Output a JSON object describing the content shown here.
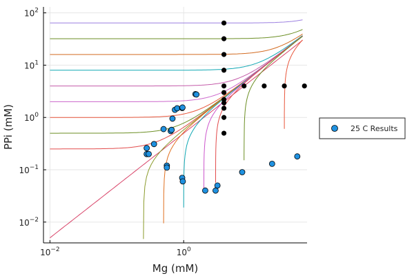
{
  "chart_data": {
    "type": "scatter",
    "xlabel": "Mg (mM)",
    "ylabel": "PPi (mM)",
    "x_scale": "log",
    "y_scale": "log",
    "xlim": [
      0.008,
      70
    ],
    "ylim": [
      0.004,
      130
    ],
    "grid": true,
    "legend_position": "right",
    "x_ticks": [
      {
        "value": 0.01,
        "base": "10",
        "exp": "−2"
      },
      {
        "value": 1,
        "base": "10",
        "exp": "0"
      }
    ],
    "y_ticks": [
      {
        "value": 0.01,
        "base": "10",
        "exp": "−2"
      },
      {
        "value": 0.1,
        "base": "10",
        "exp": "−1"
      },
      {
        "value": 1,
        "base": "10",
        "exp": "0"
      },
      {
        "value": 10,
        "base": "10",
        "exp": "1"
      },
      {
        "value": 100,
        "base": "10",
        "exp": "2"
      }
    ],
    "series": [
      {
        "name": "25 C Results",
        "color": "#1f91e0",
        "points": [
          [
            0.28,
            0.26
          ],
          [
            0.28,
            0.2
          ],
          [
            0.3,
            0.2
          ],
          [
            0.36,
            0.31
          ],
          [
            0.5,
            0.6
          ],
          [
            0.56,
            0.12
          ],
          [
            0.56,
            0.11
          ],
          [
            0.64,
            0.55
          ],
          [
            0.66,
            0.58
          ],
          [
            0.68,
            0.95
          ],
          [
            0.74,
            1.4
          ],
          [
            0.8,
            1.5
          ],
          [
            0.95,
            1.52
          ],
          [
            0.96,
            1.55
          ],
          [
            0.95,
            0.07
          ],
          [
            0.97,
            0.06
          ],
          [
            1.5,
            2.8
          ],
          [
            1.55,
            2.75
          ],
          [
            2.1,
            0.04
          ],
          [
            3.0,
            0.04
          ],
          [
            3.2,
            0.05
          ],
          [
            7.5,
            0.09
          ],
          [
            21,
            0.13
          ],
          [
            50,
            0.18
          ]
        ]
      },
      {
        "color": "#000000",
        "points": [
          [
            4,
            64
          ],
          [
            4,
            32
          ],
          [
            4,
            16
          ],
          [
            4,
            8
          ],
          [
            4,
            4
          ],
          [
            4,
            3
          ],
          [
            4,
            2.2
          ],
          [
            4,
            1.9
          ],
          [
            4,
            1.5
          ],
          [
            4,
            1
          ],
          [
            4,
            0.5
          ],
          [
            8,
            4
          ],
          [
            16,
            4
          ],
          [
            32,
            4
          ],
          [
            64,
            4
          ]
        ]
      }
    ],
    "curves_horizontal": [
      {
        "asym": 64,
        "color": "#9b7fe0"
      },
      {
        "asym": 32,
        "color": "#6b8e23"
      },
      {
        "asym": 16,
        "color": "#d2691e"
      },
      {
        "asym": 8,
        "color": "#0fa7b3"
      },
      {
        "asym": 4,
        "color": "#c45aa9"
      },
      {
        "asym": 2,
        "color": "#cc66cc"
      },
      {
        "asym": 1,
        "color": "#e8553a"
      },
      {
        "asym": 0.5,
        "color": "#6b8e23"
      },
      {
        "asym": 0.25,
        "color": "#e24a4a"
      },
      {
        "asym": 0,
        "color": "#d9456a"
      }
    ],
    "curves_vertical": [
      {
        "asym": 0.25,
        "color": "#8a9a2a"
      },
      {
        "asym": 0.5,
        "color": "#e07020"
      },
      {
        "asym": 1,
        "color": "#0fa7b3"
      },
      {
        "asym": 2,
        "color": "#cc55cc"
      },
      {
        "asym": 3,
        "color": "#e24a4a"
      },
      {
        "asym": 8,
        "color": "#6b8e23"
      },
      {
        "asym": 32,
        "color": "#e8553a"
      },
      {
        "asym": 64,
        "color": "#b050c0"
      }
    ]
  }
}
